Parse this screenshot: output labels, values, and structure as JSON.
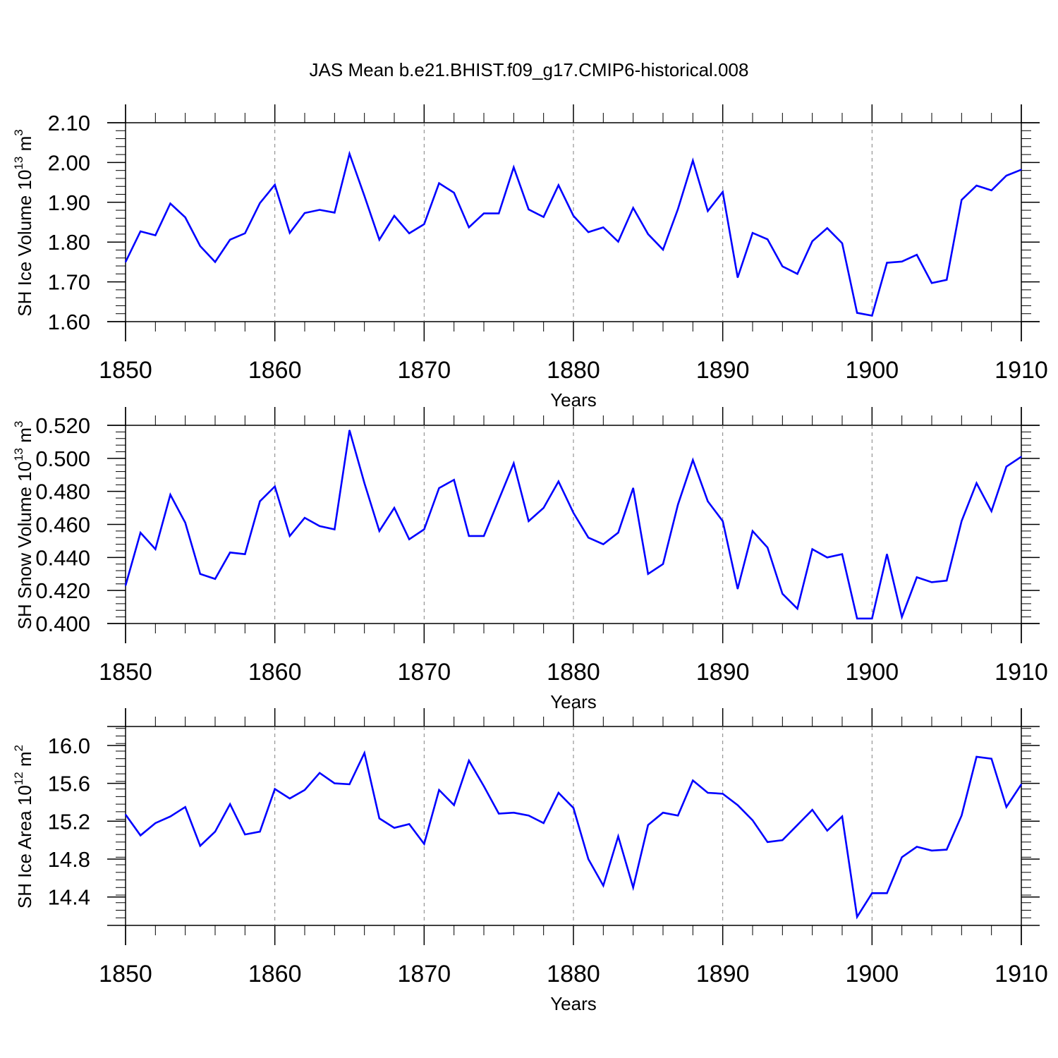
{
  "title": "JAS Mean b.e21.BHIST.f09_g17.CMIP6-historical.008",
  "colors": {
    "series": "#0000ff",
    "axis": "#000000",
    "grid": "#7f7f7f"
  },
  "chart_data": [
    {
      "type": "line",
      "ylabel": {
        "main": "SH Ice Volume 10",
        "exp": "13",
        "unit": " m",
        "unit_exp": "3"
      },
      "xlabel": "Years",
      "xlim": [
        1850,
        1910
      ],
      "ylim": [
        1.6,
        2.1
      ],
      "xticks": [
        "1850",
        "1860",
        "1870",
        "1880",
        "1890",
        "1900",
        "1910"
      ],
      "yticks": [
        "1.60",
        "1.70",
        "1.80",
        "1.90",
        "2.00",
        "2.10"
      ],
      "grid": "vertical dashed at decades",
      "x_start": 1850,
      "values": [
        1.75,
        1.827,
        1.817,
        1.897,
        1.862,
        1.79,
        1.75,
        1.806,
        1.822,
        1.898,
        1.944,
        1.823,
        1.873,
        1.881,
        1.874,
        2.022,
        1.916,
        1.806,
        1.866,
        1.822,
        1.845,
        1.948,
        1.924,
        1.837,
        1.872,
        1.872,
        1.988,
        1.882,
        1.863,
        1.943,
        1.866,
        1.825,
        1.837,
        1.801,
        1.886,
        1.82,
        1.781,
        1.883,
        2.005,
        1.878,
        1.926,
        1.711,
        1.823,
        1.807,
        1.739,
        1.72,
        1.802,
        1.835,
        1.797,
        1.622,
        1.615,
        1.748,
        1.751,
        1.768,
        1.697,
        1.705,
        1.906,
        1.942,
        1.93,
        1.967,
        1.982
      ]
    },
    {
      "type": "line",
      "ylabel": {
        "main": "SH Snow Volume 10",
        "exp": "13",
        "unit": " m",
        "unit_exp": "3"
      },
      "xlabel": "Years",
      "xlim": [
        1850,
        1910
      ],
      "ylim": [
        0.4,
        0.52
      ],
      "xticks": [
        "1850",
        "1860",
        "1870",
        "1880",
        "1890",
        "1900",
        "1910"
      ],
      "yticks": [
        "0.400",
        "0.420",
        "0.440",
        "0.460",
        "0.480",
        "0.500",
        "0.520"
      ],
      "grid": "vertical dashed at decades",
      "x_start": 1850,
      "values": [
        0.423,
        0.455,
        0.445,
        0.478,
        0.461,
        0.43,
        0.427,
        0.443,
        0.442,
        0.474,
        0.483,
        0.453,
        0.464,
        0.459,
        0.457,
        0.517,
        0.485,
        0.456,
        0.47,
        0.451,
        0.457,
        0.482,
        0.487,
        0.453,
        0.453,
        0.475,
        0.497,
        0.462,
        0.47,
        0.486,
        0.467,
        0.452,
        0.448,
        0.455,
        0.482,
        0.43,
        0.436,
        0.472,
        0.499,
        0.474,
        0.462,
        0.421,
        0.456,
        0.446,
        0.418,
        0.409,
        0.445,
        0.44,
        0.442,
        0.403,
        0.403,
        0.442,
        0.404,
        0.428,
        0.425,
        0.426,
        0.462,
        0.485,
        0.468,
        0.495,
        0.501
      ]
    },
    {
      "type": "line",
      "ylabel": {
        "main": "SH Ice Area 10",
        "exp": "12",
        "unit": " m",
        "unit_exp": "2"
      },
      "xlabel": "Years",
      "xlim": [
        1850,
        1910
      ],
      "ylim": [
        14.1,
        16.2
      ],
      "xticks": [
        "1850",
        "1860",
        "1870",
        "1880",
        "1890",
        "1900",
        "1910"
      ],
      "yticks": [
        "14.4",
        "14.8",
        "15.2",
        "15.6",
        "16.0"
      ],
      "grid": "vertical dashed at decades",
      "x_start": 1850,
      "values": [
        15.27,
        15.05,
        15.18,
        15.25,
        15.35,
        14.94,
        15.09,
        15.38,
        15.06,
        15.09,
        15.54,
        15.44,
        15.53,
        15.71,
        15.6,
        15.59,
        15.92,
        15.23,
        15.13,
        15.17,
        14.96,
        15.53,
        15.37,
        15.84,
        15.57,
        15.28,
        15.29,
        15.26,
        15.18,
        15.5,
        15.34,
        14.8,
        14.52,
        15.04,
        14.5,
        15.16,
        15.29,
        15.26,
        15.63,
        15.5,
        15.49,
        15.37,
        15.21,
        14.98,
        15.0,
        15.16,
        15.32,
        15.1,
        15.25,
        14.19,
        14.44,
        14.44,
        14.82,
        14.93,
        14.89,
        14.9,
        15.26,
        15.88,
        15.86,
        15.35,
        15.59
      ]
    }
  ]
}
